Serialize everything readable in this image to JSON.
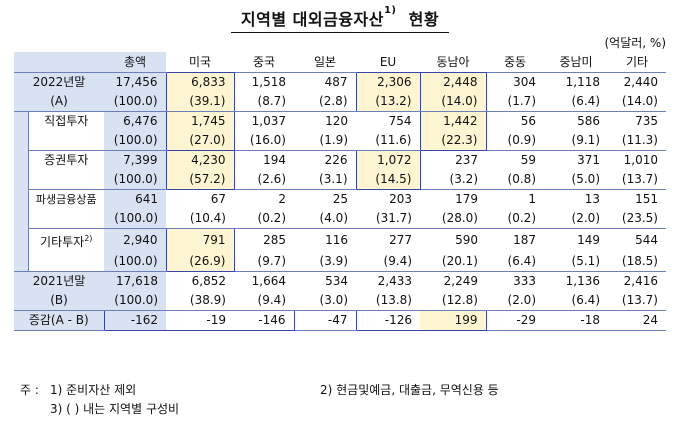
{
  "title": "지역별 대외금융자산",
  "title_sup": "1)",
  "title_suffix": "현황",
  "unit": "(억달러, %)",
  "headers": [
    "",
    "총액",
    "미국",
    "중국",
    "일본",
    "EU",
    "동남아",
    "중동",
    "중남미",
    "기타"
  ],
  "rows": [
    {
      "label": "2022년말",
      "sub": "(A)",
      "values": [
        "17,456",
        "6,833",
        "1,518",
        "487",
        "2,306",
        "2,448",
        "304",
        "1,118",
        "2,440"
      ],
      "shares": [
        "(100.0)",
        "(39.1)",
        "(8.7)",
        "(2.8)",
        "(13.2)",
        "(14.0)",
        "(1.7)",
        "(6.4)",
        "(14.0)"
      ]
    },
    {
      "label": "직접투자",
      "values": [
        "6,476",
        "1,745",
        "1,037",
        "120",
        "754",
        "1,442",
        "56",
        "586",
        "735"
      ],
      "shares": [
        "(100.0)",
        "(27.0)",
        "(16.0)",
        "(1.9)",
        "(11.6)",
        "(22.3)",
        "(0.9)",
        "(9.1)",
        "(11.3)"
      ]
    },
    {
      "label": "증권투자",
      "values": [
        "7,399",
        "4,230",
        "194",
        "226",
        "1,072",
        "237",
        "59",
        "371",
        "1,010"
      ],
      "shares": [
        "(100.0)",
        "(57.2)",
        "(2.6)",
        "(3.1)",
        "(14.5)",
        "(3.2)",
        "(0.8)",
        "(5.0)",
        "(13.7)"
      ]
    },
    {
      "label": "파생금융상품",
      "values": [
        "641",
        "67",
        "2",
        "25",
        "203",
        "179",
        "1",
        "13",
        "151"
      ],
      "shares": [
        "(100.0)",
        "(10.4)",
        "(0.2)",
        "(4.0)",
        "(31.7)",
        "(28.0)",
        "(0.2)",
        "(2.0)",
        "(23.5)"
      ]
    },
    {
      "label": "기타투자",
      "label_sup": "2)",
      "values": [
        "2,940",
        "791",
        "285",
        "116",
        "277",
        "590",
        "187",
        "149",
        "544"
      ],
      "shares": [
        "(100.0)",
        "(26.9)",
        "(9.7)",
        "(3.9)",
        "(9.4)",
        "(20.1)",
        "(6.4)",
        "(5.1)",
        "(18.5)"
      ]
    },
    {
      "label": "2021년말",
      "sub": "(B)",
      "values": [
        "17,618",
        "6,852",
        "1,664",
        "534",
        "2,433",
        "2,249",
        "333",
        "1,136",
        "2,416"
      ],
      "shares": [
        "(100.0)",
        "(38.9)",
        "(9.4)",
        "(3.0)",
        "(13.8)",
        "(12.8)",
        "(2.0)",
        "(6.4)",
        "(13.7)"
      ]
    },
    {
      "label": "증감(A - B)",
      "values": [
        "-162",
        "-19",
        "-146",
        "-47",
        "-126",
        "199",
        "-29",
        "-18",
        "24"
      ]
    }
  ],
  "notes": {
    "prefix": "주 :",
    "n1": "1) 준비자산 제외",
    "n2": "2) 현금및예금, 대출금, 무역신용 등",
    "n3": "3) (   ) 내는 지역별 구성비"
  }
}
